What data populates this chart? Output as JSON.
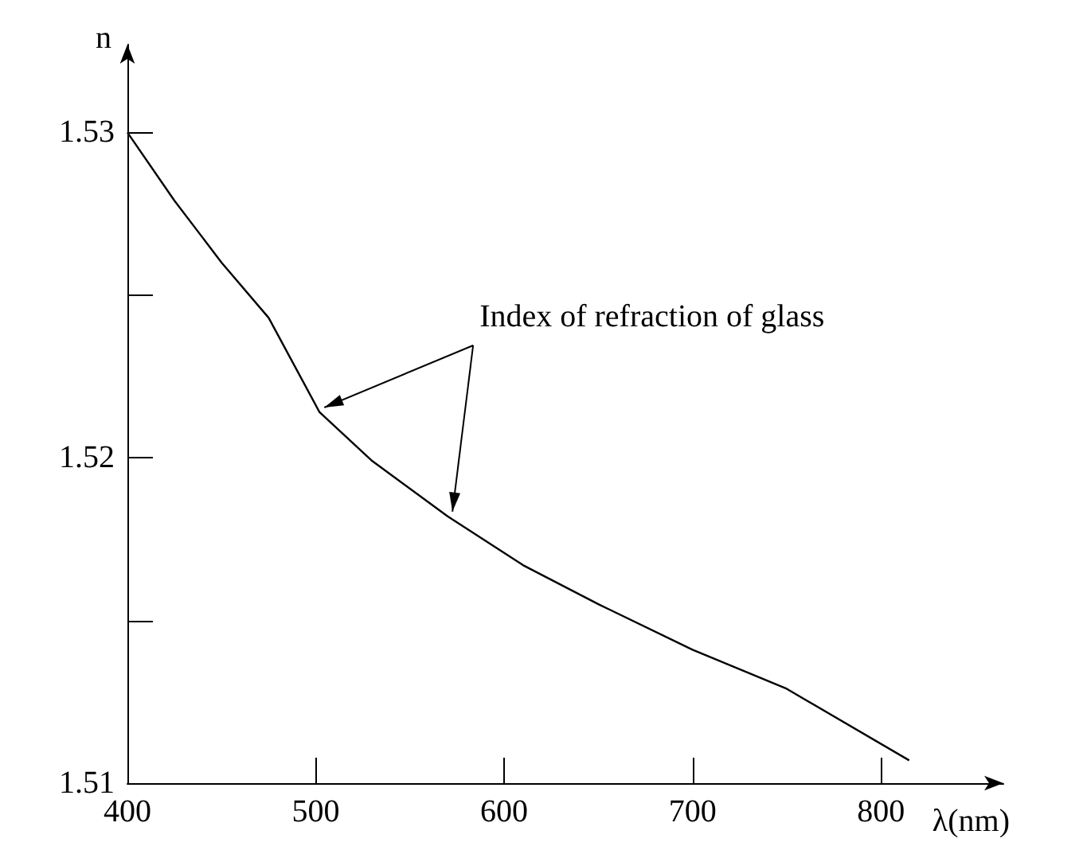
{
  "chart_data": {
    "type": "line",
    "xlabel": "λ(nm)",
    "ylabel": "n",
    "x": [
      400,
      425,
      450,
      475,
      502,
      530,
      570,
      610,
      650,
      700,
      750,
      815
    ],
    "series": [
      {
        "color": "#000000",
        "values": [
          1.53,
          1.5279,
          1.526,
          1.5243,
          1.5214,
          1.5199,
          1.5182,
          1.5167,
          1.5155,
          1.5141,
          1.5129,
          1.5107
        ]
      }
    ],
    "xlim": [
      400,
      865
    ],
    "xticks": [
      400,
      500,
      600,
      700,
      800
    ],
    "ylim": [
      1.51,
      1.5327
    ],
    "yticks": [
      1.51,
      {
        "value": 1.515,
        "label": null
      },
      1.52,
      {
        "value": 1.525,
        "label": null
      },
      1.53
    ],
    "grid": false,
    "marker": "none",
    "annotations": [
      {
        "text": "Index of refraction of glass",
        "x": 502,
        "y": 1.5214
      }
    ]
  }
}
